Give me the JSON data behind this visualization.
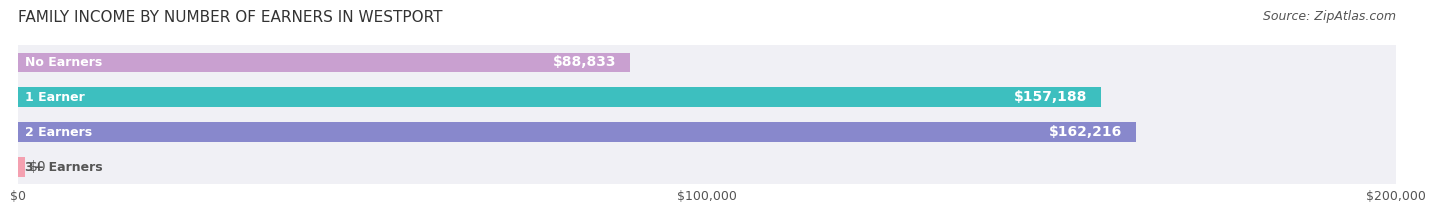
{
  "title": "FAMILY INCOME BY NUMBER OF EARNERS IN WESTPORT",
  "source": "Source: ZipAtlas.com",
  "categories": [
    "No Earners",
    "1 Earner",
    "2 Earners",
    "3+ Earners"
  ],
  "values": [
    88833,
    157188,
    162216,
    0
  ],
  "bar_colors": [
    "#c9a0d0",
    "#3dbfbf",
    "#8888cc",
    "#f4a0b0"
  ],
  "labels": [
    "$88,833",
    "$157,188",
    "$162,216",
    "$0"
  ],
  "xlim": [
    0,
    200000
  ],
  "xticks": [
    0,
    100000,
    200000
  ],
  "xtick_labels": [
    "$0",
    "$100,000",
    "$200,000"
  ],
  "bar_row_bg": "#f0f0f5",
  "fig_bg": "#ffffff",
  "bar_height": 0.55,
  "title_fontsize": 11,
  "source_fontsize": 9,
  "label_fontsize": 10,
  "category_fontsize": 9
}
